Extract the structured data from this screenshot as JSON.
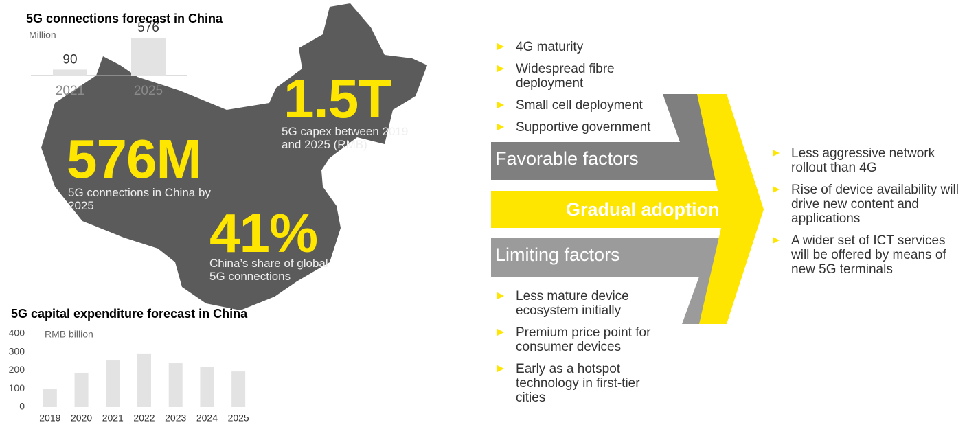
{
  "chart_data": [
    {
      "type": "bar",
      "title": "5G connections forecast in China",
      "unit": "Million",
      "categories": [
        "2021",
        "2025"
      ],
      "values": [
        90,
        576
      ],
      "color": "#e3e3e3"
    },
    {
      "type": "bar",
      "title": "5G capital expenditure forecast in China",
      "unit": "RMB billion",
      "categories": [
        "2019",
        "2020",
        "2021",
        "2022",
        "2023",
        "2024",
        "2025"
      ],
      "values": [
        97,
        187,
        254,
        292,
        239,
        217,
        194
      ],
      "color": "#e3e3e3",
      "ylim": [
        0,
        400
      ],
      "yticks": [
        0,
        100,
        200,
        300,
        400
      ]
    }
  ],
  "highlights": [
    {
      "value": "576M",
      "caption": "5G connections in China by 2025"
    },
    {
      "value": "1.5T",
      "caption": "5G capex between 2019 and 2025 (RMB)"
    },
    {
      "value": "41%",
      "caption": "China’s share of global 5G connections"
    }
  ],
  "factors": {
    "favorable": {
      "label": "Favorable factors",
      "items": [
        "4G maturity",
        "Widespread fibre deployment",
        "Small cell deployment",
        "Supportive government"
      ]
    },
    "center": "Gradual adoption",
    "limiting": {
      "label": "Limiting factors",
      "items": [
        "Less mature device ecosystem initially",
        "Premium price point for consumer devices",
        "Early as a hotspot technology in first-tier cities"
      ]
    },
    "outcomes": [
      "Less aggressive network rollout than 4G",
      "Rise of device availability will drive new content and applications",
      "A wider set of ICT services will be offered by means of new 5G terminals"
    ]
  }
}
